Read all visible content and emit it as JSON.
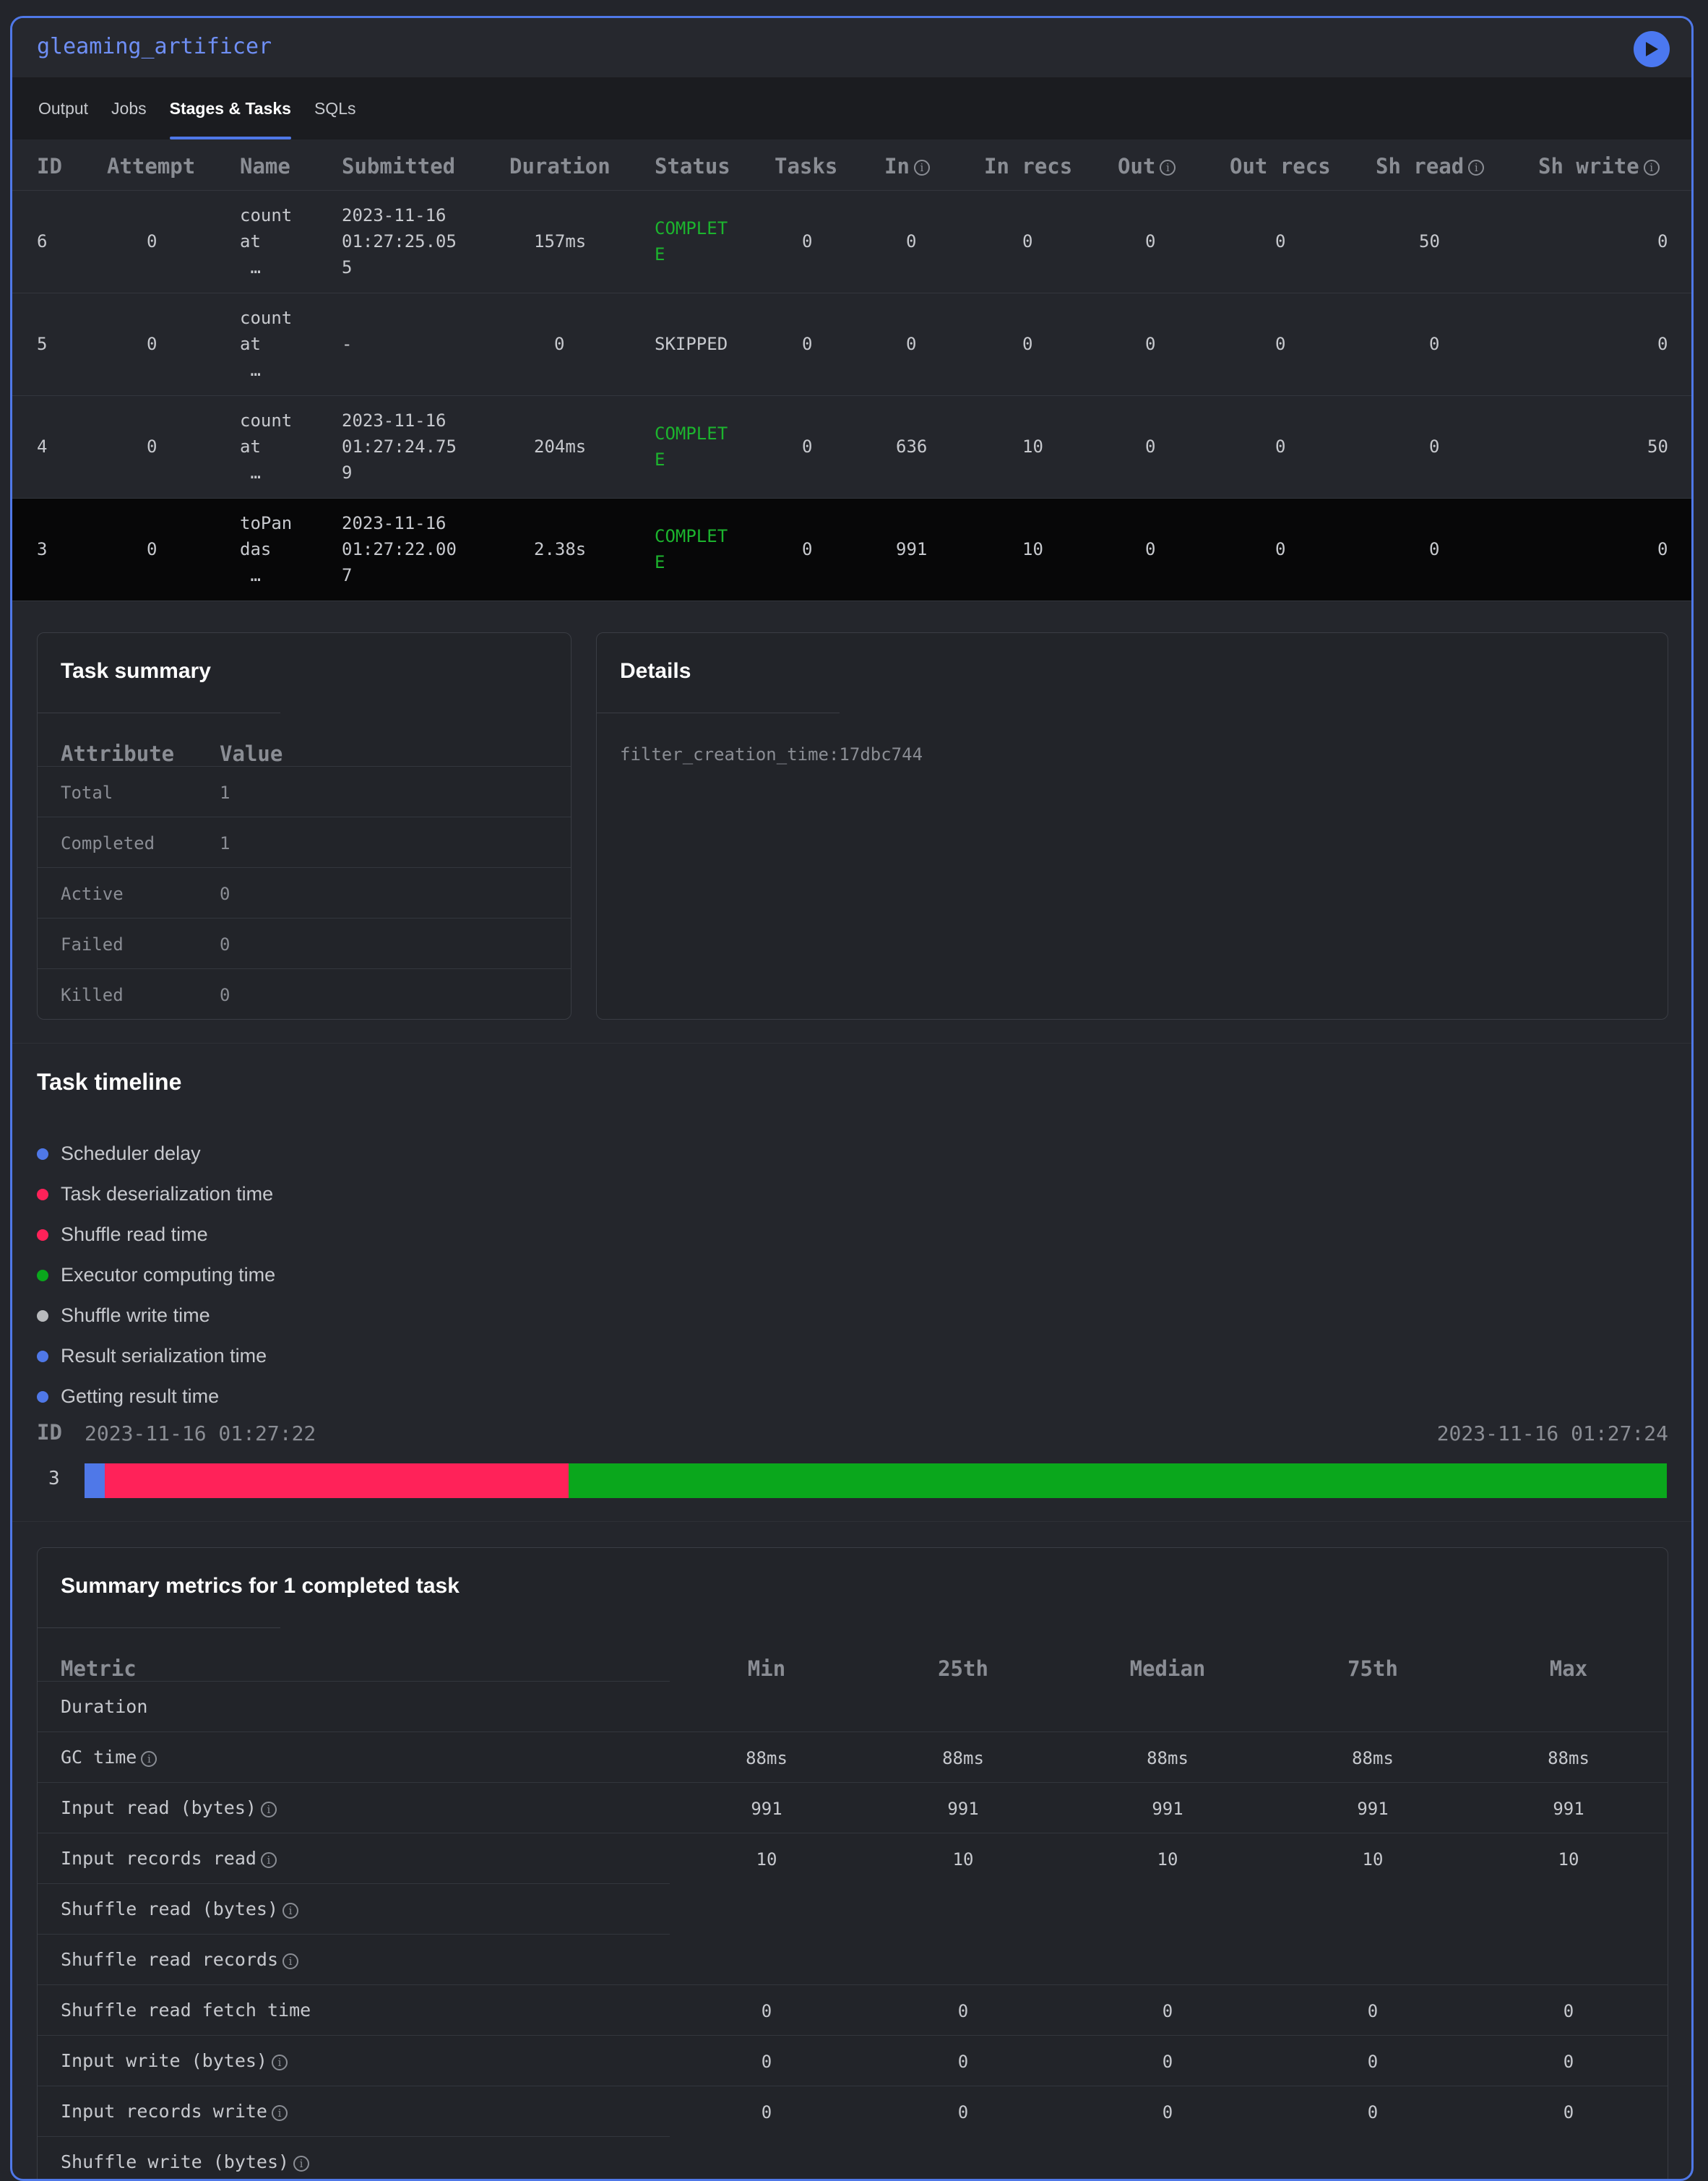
{
  "app": {
    "title": "gleaming_artificer",
    "run_icon": "play-icon",
    "accent": "#4f78e8"
  },
  "tabs": [
    {
      "label": "Output",
      "active": false
    },
    {
      "label": "Jobs",
      "active": false
    },
    {
      "label": "Stages & Tasks",
      "active": true
    },
    {
      "label": "SQLs",
      "active": false
    }
  ],
  "stages": {
    "headers": [
      "ID",
      "Attempt",
      "Name",
      "Submitted",
      "Duration",
      "Status",
      "Tasks",
      "In",
      "In recs",
      "Out",
      "Out recs",
      "Sh read",
      "Sh write"
    ],
    "rows": [
      {
        "id": "6",
        "attempt": "0",
        "name": "count\nat\n …",
        "submitted": "2023-11-16\n01:27:25.05\n5",
        "duration": "157ms",
        "status": "COMPLET\nE",
        "tasks": "0",
        "in": "0",
        "in_recs": "0",
        "out": "0",
        "out_recs": "0",
        "sh_read": "50",
        "sh_write": "0"
      },
      {
        "id": "5",
        "attempt": "0",
        "name": "count\nat\n …",
        "submitted": "-",
        "duration": "0",
        "status": "SKIPPED",
        "tasks": "0",
        "in": "0",
        "in_recs": "0",
        "out": "0",
        "out_recs": "0",
        "sh_read": "0",
        "sh_write": "0"
      },
      {
        "id": "4",
        "attempt": "0",
        "name": "count\nat\n …",
        "submitted": "2023-11-16\n01:27:24.75\n9",
        "duration": "204ms",
        "status": "COMPLET\nE",
        "tasks": "0",
        "in": "636",
        "in_recs": "10",
        "out": "0",
        "out_recs": "0",
        "sh_read": "0",
        "sh_write": "50"
      },
      {
        "id": "3",
        "attempt": "0",
        "name": "toPan\ndas\n …",
        "submitted": "2023-11-16\n01:27:22.00\n7",
        "duration": "2.38s",
        "status": "COMPLET\nE",
        "tasks": "0",
        "in": "991",
        "in_recs": "10",
        "out": "0",
        "out_recs": "0",
        "sh_read": "0",
        "sh_write": "0"
      }
    ]
  },
  "task_summary": {
    "title": "Task summary",
    "headers": [
      "Attribute",
      "Value"
    ],
    "rows": [
      {
        "attr": "Total",
        "value": "1"
      },
      {
        "attr": "Completed",
        "value": "1"
      },
      {
        "attr": "Active",
        "value": "0"
      },
      {
        "attr": "Failed",
        "value": "0"
      },
      {
        "attr": "Killed",
        "value": "0"
      }
    ]
  },
  "details": {
    "title": "Details",
    "text": "filter_creation_time:17dbc744"
  },
  "timeline": {
    "title": "Task timeline",
    "legend": [
      {
        "label": "Scheduler delay",
        "color": "#4f78e8"
      },
      {
        "label": "Task deserialization time",
        "color": "#ff2259"
      },
      {
        "label": "Shuffle read time",
        "color": "#ff2259"
      },
      {
        "label": "Executor computing time",
        "color": "#0aa71c"
      },
      {
        "label": "Shuffle write time",
        "color": "#b8babd"
      },
      {
        "label": "Result serialization time",
        "color": "#4f78e8"
      },
      {
        "label": "Getting result time",
        "color": "#4f78e8"
      }
    ],
    "id_label": "ID",
    "start": "2023-11-16 01:27:22",
    "end": "2023-11-16 01:27:24",
    "task_id": "3",
    "segments_fraction": [
      {
        "name": "Scheduler delay",
        "fraction": 0.013,
        "color": "#4f78e8"
      },
      {
        "name": "Task deserialization time",
        "fraction": 0.293,
        "color": "#ff2259"
      },
      {
        "name": "Executor computing time",
        "fraction": 0.694,
        "color": "#0aa71c"
      }
    ]
  },
  "metrics": {
    "title": "Summary metrics for 1 completed task",
    "headers": [
      "Metric",
      "Min",
      "25th",
      "Median",
      "75th",
      "Max"
    ],
    "rows": [
      {
        "label": "Duration",
        "info": false,
        "values": []
      },
      {
        "label": "GC time",
        "info": true,
        "values": [
          "88ms",
          "88ms",
          "88ms",
          "88ms",
          "88ms"
        ]
      },
      {
        "label": "Input read (bytes)",
        "info": true,
        "values": [
          "991",
          "991",
          "991",
          "991",
          "991"
        ]
      },
      {
        "label": "Input records read",
        "info": true,
        "values": [
          "10",
          "10",
          "10",
          "10",
          "10"
        ]
      },
      {
        "label": "Shuffle read (bytes)",
        "info": true,
        "values": []
      },
      {
        "label": "Shuffle read records",
        "info": true,
        "values": []
      },
      {
        "label": "Shuffle read fetch time",
        "info": false,
        "values": [
          "0",
          "0",
          "0",
          "0",
          "0"
        ]
      },
      {
        "label": "Input write (bytes)",
        "info": true,
        "values": [
          "0",
          "0",
          "0",
          "0",
          "0"
        ]
      },
      {
        "label": "Input records write",
        "info": true,
        "values": [
          "0",
          "0",
          "0",
          "0",
          "0"
        ]
      },
      {
        "label": "Shuffle write (bytes)",
        "info": true,
        "values": []
      }
    ]
  }
}
